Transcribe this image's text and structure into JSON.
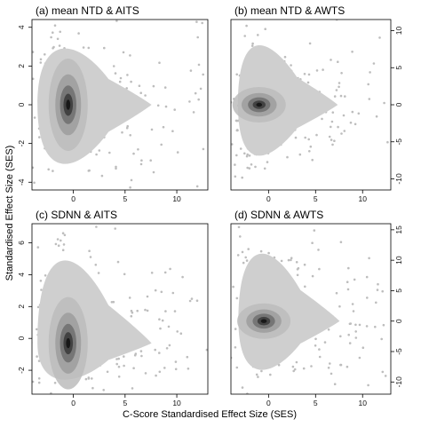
{
  "xlabel": "C-Score Standardised Effect Size (SES)",
  "ylabel": "Standardised Effect Size (SES)",
  "chart_data": [
    {
      "type": "scatter",
      "title": "(a) mean NTD & AITS",
      "xlim": [
        -4,
        13
      ],
      "ylim": [
        -4.4,
        4.4
      ],
      "xticks": [
        0,
        5,
        10
      ],
      "yticks": [
        -4,
        -2,
        0,
        2,
        4
      ],
      "y_axis_side": "left",
      "density_peak": [
        -0.5,
        0
      ],
      "x_spread": [
        -3.8,
        12.5
      ],
      "y_spread": [
        -4,
        3.8
      ]
    },
    {
      "type": "scatter",
      "title": "(b) mean NTD & AWTS",
      "xlim": [
        -4,
        13
      ],
      "ylim": [
        -11.5,
        11.5
      ],
      "xticks": [
        0,
        5,
        10
      ],
      "yticks": [
        -10,
        -5,
        0,
        5,
        10
      ],
      "y_axis_side": "right",
      "density_peak": [
        -1,
        0
      ],
      "x_spread": [
        -3.5,
        12.5
      ],
      "y_spread": [
        -9,
        10.5
      ]
    },
    {
      "type": "scatter",
      "title": "(c) SDNN & AITS",
      "xlim": [
        -4,
        13
      ],
      "ylim": [
        -3.5,
        7.2
      ],
      "xticks": [
        0,
        5,
        10
      ],
      "yticks": [
        -2,
        0,
        2,
        4,
        6
      ],
      "y_axis_side": "left",
      "density_peak": [
        -0.5,
        -0.3
      ],
      "x_spread": [
        -3.8,
        12.5
      ],
      "y_spread": [
        -3.3,
        6.5
      ]
    },
    {
      "type": "scatter",
      "title": "(d) SDNN & AWTS",
      "xlim": [
        -4,
        13
      ],
      "ylim": [
        -12,
        16
      ],
      "xticks": [
        0,
        5,
        10
      ],
      "yticks": [
        -10,
        -5,
        0,
        5,
        10,
        15
      ],
      "y_axis_side": "right",
      "density_peak": [
        -0.5,
        0
      ],
      "x_spread": [
        -3.5,
        12.5
      ],
      "y_spread": [
        -10.5,
        14.5
      ]
    }
  ]
}
